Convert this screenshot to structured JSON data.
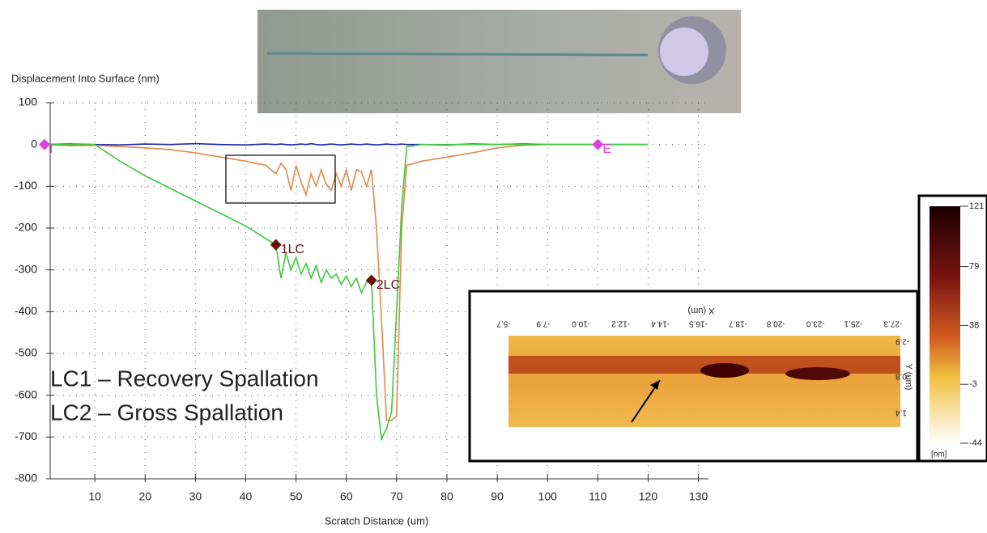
{
  "chart_data": {
    "type": "line",
    "title": "Displacement Into Surface (nm)",
    "x_label": "Scratch Distance  (um)",
    "annotations": [
      "LC1 – Recovery Spallation",
      "LC2 – Gross Spallation"
    ],
    "x": [
      0,
      5,
      10,
      15,
      20,
      25,
      30,
      35,
      40,
      44,
      46,
      47,
      48,
      49,
      50,
      51,
      52,
      53,
      54,
      55,
      56,
      57,
      58,
      59,
      60,
      61,
      62,
      63,
      64,
      65,
      66,
      67,
      68,
      69,
      70,
      71,
      72,
      75,
      80,
      85,
      90,
      95,
      100,
      110,
      120
    ],
    "series": [
      {
        "color": "#1a2aa8",
        "values": [
          0,
          1,
          0,
          -1,
          1,
          0,
          2,
          0,
          -1,
          1,
          0,
          1,
          0,
          -1,
          0,
          1,
          0,
          2,
          0,
          -1,
          0,
          1,
          0,
          -1,
          0,
          1,
          0,
          0,
          1,
          0,
          -1,
          0,
          1,
          0,
          0,
          1,
          0,
          0,
          -1,
          1,
          0,
          1,
          0,
          0,
          0
        ]
      },
      {
        "color": "#e0894a",
        "values": [
          0,
          -3,
          -2,
          -5,
          -8,
          -12,
          -20,
          -30,
          -40,
          -50,
          -70,
          -45,
          -60,
          -110,
          -50,
          -90,
          -120,
          -70,
          -100,
          -60,
          -95,
          -110,
          -70,
          -100,
          -60,
          -110,
          -60,
          -65,
          -100,
          -60,
          -200,
          -420,
          -660,
          -660,
          -650,
          -200,
          -50,
          -40,
          -30,
          -20,
          -8,
          -2,
          0,
          0,
          0
        ]
      },
      {
        "color": "#3ec83e",
        "values": [
          0,
          0,
          0,
          -40,
          -75,
          -105,
          -135,
          -165,
          -195,
          -225,
          -240,
          -320,
          -260,
          -300,
          -270,
          -310,
          -285,
          -320,
          -290,
          -330,
          -300,
          -320,
          -310,
          -335,
          -315,
          -340,
          -320,
          -355,
          -330,
          -325,
          -600,
          -705,
          -680,
          -640,
          -400,
          -150,
          -5,
          0,
          0,
          0,
          0,
          0,
          0,
          0,
          0
        ]
      }
    ],
    "markers": [
      {
        "x": 0,
        "y": 0,
        "label": "I",
        "color": "#e040e0"
      },
      {
        "x": 110,
        "y": 0,
        "label": "E",
        "color": "#e040e0"
      },
      {
        "x": 46,
        "y": -240,
        "label": "1LC",
        "color": "#6a1010"
      },
      {
        "x": 65,
        "y": -325,
        "label": "2LC",
        "color": "#6a1010"
      }
    ],
    "xlim": [
      0,
      132
    ],
    "ylim": [
      -800,
      100
    ],
    "xticks": [
      10,
      20,
      30,
      40,
      50,
      60,
      70,
      80,
      90,
      100,
      110,
      120,
      130
    ],
    "yticks": [
      -800,
      -700,
      -600,
      -500,
      -400,
      -300,
      -200,
      -100,
      0,
      100
    ],
    "grid": true,
    "inset": {
      "x_label": "X (um)",
      "y_label": "Y (um)",
      "xlim": [
        -5.7,
        -27.3
      ],
      "xticks": [
        -5.7,
        -7.9,
        {
          "value": -10,
          "label": "-10.0"
        },
        -12.2,
        -14.4,
        -16.5,
        -18.7,
        -20.8,
        {
          "value": -23,
          "label": "-23.0"
        },
        -25.1,
        -27.3
      ],
      "ylim": [
        -2.9,
        1.4
      ],
      "yticks": [
        -2.9,
        {
          "value": -0.8,
          "label": "-0.8"
        },
        1.4
      ]
    },
    "colorbar": {
      "lim": [
        121,
        -44
      ],
      "ticks": [
        121,
        79,
        38,
        -3,
        -44
      ],
      "unit": "[nm]"
    }
  }
}
